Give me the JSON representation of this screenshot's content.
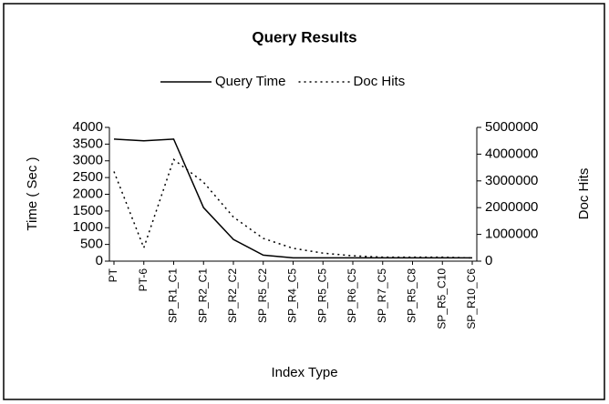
{
  "chart_data": {
    "type": "line",
    "title": "Query Results",
    "categories": [
      "PT",
      "PT-6",
      "SP_R1_C1",
      "SP_R2_C1",
      "SP_R2_C2",
      "SP_R5_C2",
      "SP_R4_C5",
      "SP_R5_C5",
      "SP_R6_C5",
      "SP_R7_C5",
      "SP_R5_C8",
      "SP_R5_C10",
      "SP_R10_C6"
    ],
    "series": [
      {
        "name": "Query Time",
        "color": "#000000",
        "dash": "solid",
        "values": [
          3650,
          3600,
          3650,
          1600,
          650,
          180,
          100,
          100,
          100,
          100,
          100,
          100,
          100
        ]
      },
      {
        "name": "Doc Hits",
        "color": "#000000",
        "dash": "dotted",
        "axis": "y2",
        "values": [
          3350000,
          500000,
          3800000,
          2950000,
          1650000,
          850000,
          480000,
          300000,
          200000,
          150000,
          150000,
          150000,
          120000
        ]
      }
    ],
    "x_label": "Index Type",
    "y_label": "Time ( Sec )",
    "y2_label": "Doc Hits",
    "ylim": [
      0,
      4000
    ],
    "yticks": [
      0,
      500,
      1000,
      1500,
      2000,
      2500,
      3000,
      3500,
      4000
    ],
    "y2lim": [
      0,
      5000000
    ],
    "y2ticks": [
      0,
      1000000,
      2000000,
      3000000,
      4000000,
      5000000
    ],
    "legend": "top",
    "grid": false
  }
}
